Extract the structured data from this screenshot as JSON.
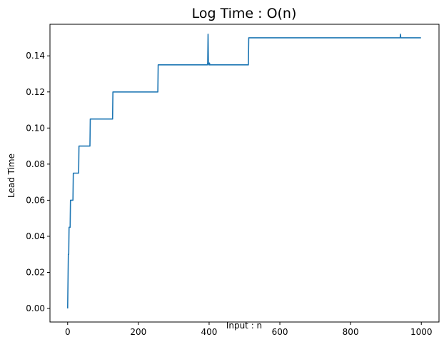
{
  "chart_data": {
    "type": "line",
    "title": "Log Time : O(n)",
    "xlabel": "Input : n",
    "ylabel": "Lead Time",
    "xlim": [
      -50,
      1050
    ],
    "ylim": [
      -0.0075,
      0.1575
    ],
    "xticks": [
      0,
      200,
      400,
      600,
      800,
      1000
    ],
    "xtick_labels": [
      "0",
      "200",
      "400",
      "600",
      "800",
      "1000"
    ],
    "yticks": [
      0.0,
      0.02,
      0.04,
      0.06,
      0.08,
      0.1,
      0.12,
      0.14
    ],
    "ytick_labels": [
      "0.00",
      "0.02",
      "0.04",
      "0.06",
      "0.08",
      "0.10",
      "0.12",
      "0.14"
    ],
    "grid": false,
    "legend": "none",
    "line_color": "#1f77b4",
    "series": [
      {
        "x": [
          0,
          1,
          2,
          3,
          4,
          7,
          8,
          15,
          16,
          31,
          32,
          63,
          64,
          127,
          128,
          255,
          256,
          395,
          396,
          397,
          398,
          399,
          400,
          401,
          402,
          511,
          512,
          940,
          941,
          942,
          999
        ],
        "values": [
          0.0,
          0.015,
          0.03,
          0.03,
          0.045,
          0.045,
          0.06,
          0.06,
          0.075,
          0.075,
          0.09,
          0.09,
          0.105,
          0.105,
          0.12,
          0.12,
          0.135,
          0.135,
          0.136,
          0.152,
          0.136,
          0.135,
          0.135,
          0.136,
          0.135,
          0.135,
          0.15,
          0.15,
          0.152,
          0.15,
          0.15
        ]
      }
    ]
  }
}
